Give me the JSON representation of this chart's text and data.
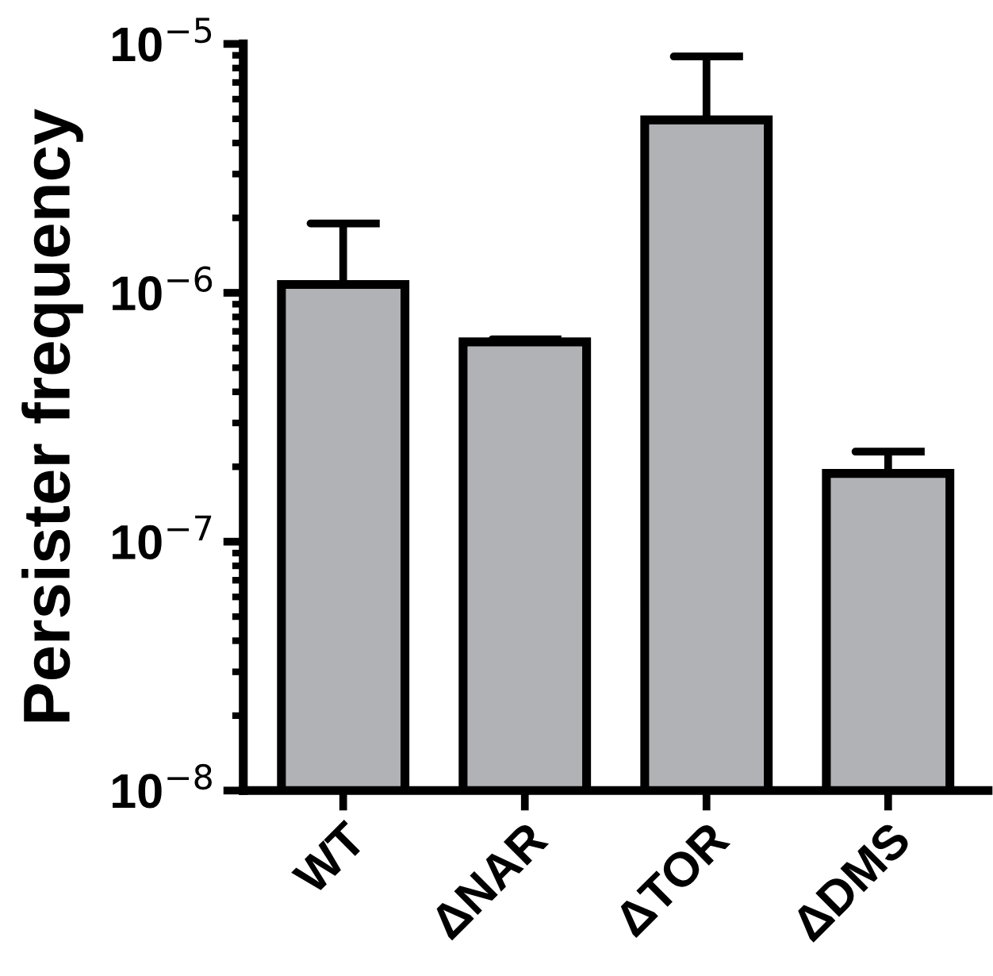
{
  "chart_data": {
    "type": "bar",
    "ylabel": "Persister frequency",
    "categories": [
      "WT",
      "ΔNAR",
      "ΔTOR",
      "ΔDMS"
    ],
    "values": [
      1.08e-06,
      6.35e-07,
      4.95e-06,
      1.88e-07
    ],
    "errors": [
      [
        1.08e-06,
        1.9e-06
      ],
      [
        6.35e-07,
        6.5e-07
      ],
      [
        4.95e-06,
        8.9e-06
      ],
      [
        1.88e-07,
        2.3e-07
      ]
    ],
    "color": "#b1b2b6",
    "log": "y",
    "ylim": [
      1e-08,
      1e-05
    ],
    "yticks": [
      {
        "value": 1e-08,
        "label": "10$^{−8}$"
      },
      {
        "value": 1e-07,
        "label": "10$^{−7}$"
      },
      {
        "value": 1e-06,
        "label": "10$^{−6}$"
      },
      {
        "value": 1e-05,
        "label": "10$^{−5}$"
      }
    ],
    "grid": false,
    "legend": false
  }
}
